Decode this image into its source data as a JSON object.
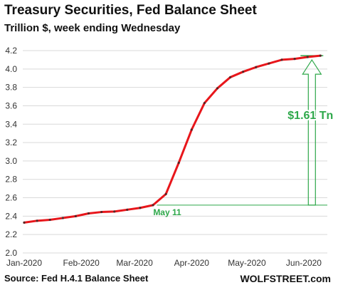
{
  "title": "Treasury Securities, Fed Balance Sheet",
  "subtitle": "Trillion $, week ending Wednesday",
  "source": "Source: Fed H.4.1 Balance Sheet",
  "brand": "WOLFSTREET.com",
  "colors": {
    "line": "#e8161b",
    "marker": "#5a2424",
    "annotation": "#2ea84a",
    "grid": "#d9d9d9"
  },
  "chart_data": {
    "type": "line",
    "title": "Treasury Securities, Fed Balance Sheet",
    "subtitle": "Trillion $, week ending Wednesday",
    "xlabel": "",
    "ylabel": "",
    "ylim": [
      2.0,
      4.2
    ],
    "yticks": [
      "2.0",
      "2.2",
      "2.4",
      "2.6",
      "2.8",
      "3.0",
      "3.2",
      "3.4",
      "3.6",
      "3.8",
      "4.0",
      "4.2"
    ],
    "xticks": [
      {
        "label": "Jan-2020",
        "week": 0
      },
      {
        "label": "Feb-2020",
        "week": 4.43
      },
      {
        "label": "Mar-2020",
        "week": 8.57
      },
      {
        "label": "Apr-2020",
        "week": 13
      },
      {
        "label": "May-2020",
        "week": 17.29
      },
      {
        "label": "Jun-2020",
        "week": 21.71
      }
    ],
    "grid": true,
    "series": [
      {
        "values": [
          2.33,
          2.35,
          2.36,
          2.38,
          2.4,
          2.43,
          2.445,
          2.45,
          2.47,
          2.49,
          2.52,
          2.64,
          2.98,
          3.34,
          3.63,
          3.79,
          3.91,
          3.97,
          4.02,
          4.06,
          4.1,
          4.11,
          4.13,
          4.145
        ]
      }
    ],
    "annotations": [
      {
        "text": "May 11",
        "week": 10.3,
        "value": 2.52
      },
      {
        "text": "$1.61 Tn",
        "from": 2.52,
        "to": 4.145
      }
    ]
  }
}
